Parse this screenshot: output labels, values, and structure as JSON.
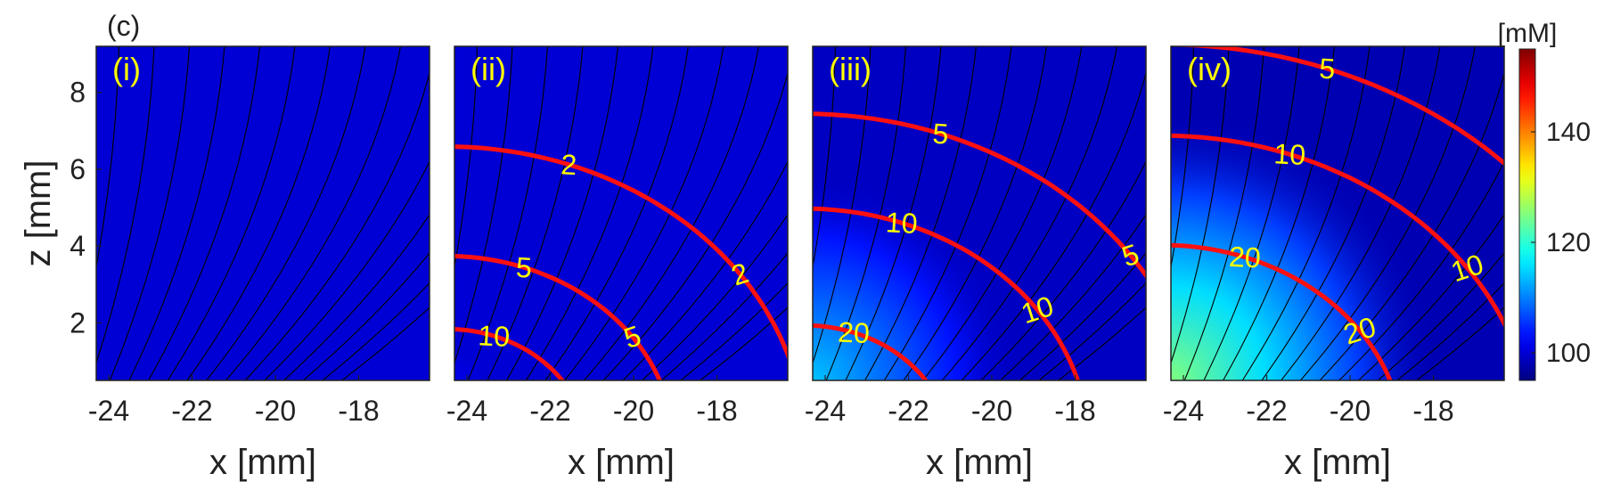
{
  "figure_label": "(c)",
  "chart_data": {
    "type": "heatmap",
    "description_units": "concentration",
    "colorbar": {
      "unit_label": "[mM]",
      "range": [
        95,
        155
      ],
      "ticks": [
        100,
        120,
        140
      ],
      "colormap": "jet"
    },
    "xlabel": "x [mm]",
    "ylabel": "z [mm]",
    "xlim": [
      -24.3,
      -16.3
    ],
    "ylim": [
      0.5,
      9.2
    ],
    "xticks": [
      -24,
      -22,
      -20,
      -18
    ],
    "yticks": [
      2,
      4,
      6,
      8
    ],
    "panels": [
      {
        "label": "(i)",
        "background_level": 100,
        "hotspot_level": 100,
        "contours": []
      },
      {
        "label": "(ii)",
        "background_level": 100,
        "hotspot_level": 101,
        "contours": [
          {
            "level": "2",
            "radius": 8.2
          },
          {
            "level": "5",
            "radius": 5.2
          },
          {
            "level": "10",
            "radius": 3.2
          },
          {
            "level": "",
            "radius": 1.3
          }
        ]
      },
      {
        "label": "(iii)",
        "background_level": 99,
        "hotspot_level": 114,
        "contours": [
          {
            "level": "5",
            "radius": 9.1
          },
          {
            "level": "10",
            "radius": 6.5
          },
          {
            "level": "20",
            "radius": 3.3
          }
        ]
      },
      {
        "label": "(iv)",
        "background_level": 98,
        "hotspot_level": 125,
        "contours": [
          {
            "level": "5",
            "radius": 11.0
          },
          {
            "level": "10",
            "radius": 8.5
          },
          {
            "level": "20",
            "radius": 5.5
          }
        ]
      }
    ]
  }
}
